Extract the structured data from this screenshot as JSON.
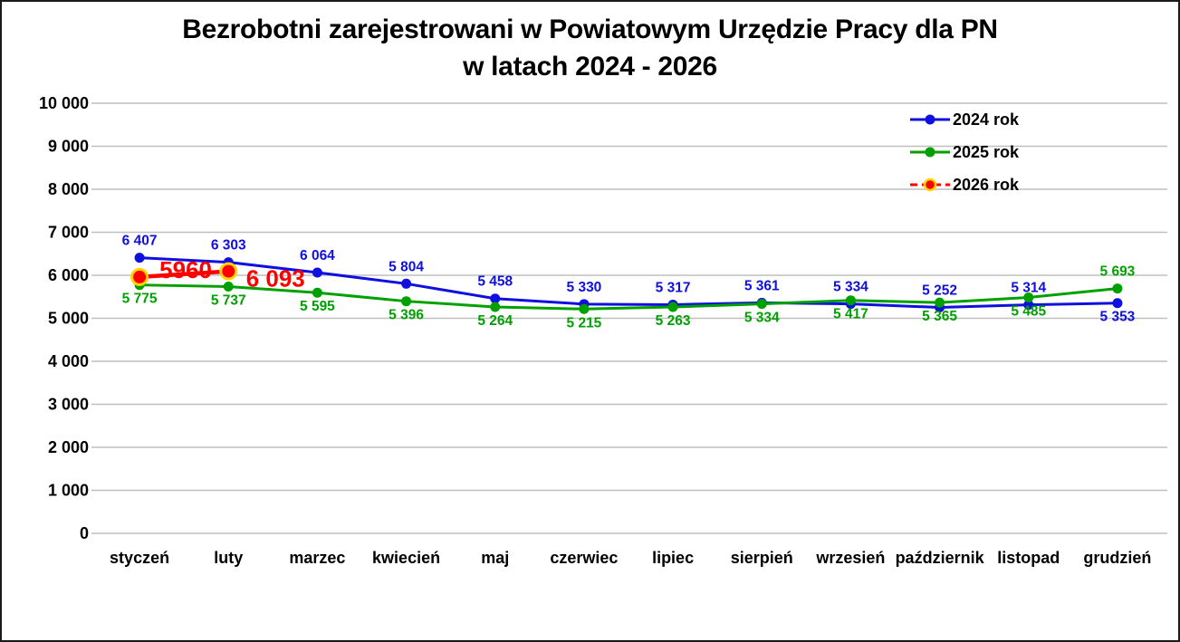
{
  "title": {
    "line1": "Bezrobotni zarejestrowani w Powiatowym Urzędzie Pracy dla PN",
    "line2": "w latach 2024 - 2026"
  },
  "colors": {
    "series_2024": "#0F0FE0",
    "series_2025": "#00A000",
    "series_2026": "#FF0000",
    "series_2026_marker_ring": "#FFD400",
    "gridline": "#BFBFBF",
    "text": "#000000",
    "background": "#FFFFFF"
  },
  "chart_data": {
    "type": "line",
    "title": "Bezrobotni zarejestrowani w Powiatowym Urzędzie Pracy dla PN w latach 2024 - 2026",
    "categories": [
      "styczeń",
      "luty",
      "marzec",
      "kwiecień",
      "maj",
      "czerwiec",
      "lipiec",
      "sierpień",
      "wrzesień",
      "październik",
      "listopad",
      "grudzień"
    ],
    "series": [
      {
        "name": "2024 rok",
        "color": "#0F0FE0",
        "dashed": false,
        "values": [
          6407,
          6303,
          6064,
          5804,
          5458,
          5330,
          5317,
          5361,
          5334,
          5252,
          5314,
          5353
        ],
        "point_labels": [
          "6 407",
          "6 303",
          "6 064",
          "5 804",
          "5 458",
          "5 330",
          "5 317",
          "5 361",
          "5 334",
          "5 252",
          "5 314",
          "5 353"
        ],
        "label_side": "above",
        "label_side_exceptions": {
          "11": "below"
        }
      },
      {
        "name": "2025 rok",
        "color": "#00A000",
        "dashed": false,
        "values": [
          5775,
          5737,
          5595,
          5396,
          5264,
          5215,
          5263,
          5334,
          5417,
          5365,
          5485,
          5693
        ],
        "point_labels": [
          "5 775",
          "5 737",
          "5 595",
          "5 396",
          "5 264",
          "5 215",
          "5 263",
          "5 334",
          "5 417",
          "5 365",
          "5 485",
          "5 693"
        ],
        "label_side": "below",
        "label_side_exceptions": {
          "11": "above"
        }
      },
      {
        "name": "2026 rok",
        "color": "#FF0000",
        "marker_ring": "#FFD400",
        "dashed": true,
        "values": [
          5960,
          6093,
          null,
          null,
          null,
          null,
          null,
          null,
          null,
          null,
          null,
          null
        ],
        "point_labels": [
          "5960",
          "6 093",
          null,
          null,
          null,
          null,
          null,
          null,
          null,
          null,
          null,
          null
        ],
        "label_side": "custom"
      }
    ],
    "y_axis": {
      "min": 0,
      "max": 10000,
      "step": 1000,
      "tick_labels": [
        "0",
        "1 000",
        "2 000",
        "3 000",
        "4 000",
        "5 000",
        "6 000",
        "7 000",
        "8 000",
        "9 000",
        "10 000"
      ]
    },
    "grid": "horizontal",
    "legend_position": "top-right",
    "legend_entries": [
      "2024 rok",
      "2025 rok",
      "2026 rok"
    ]
  }
}
